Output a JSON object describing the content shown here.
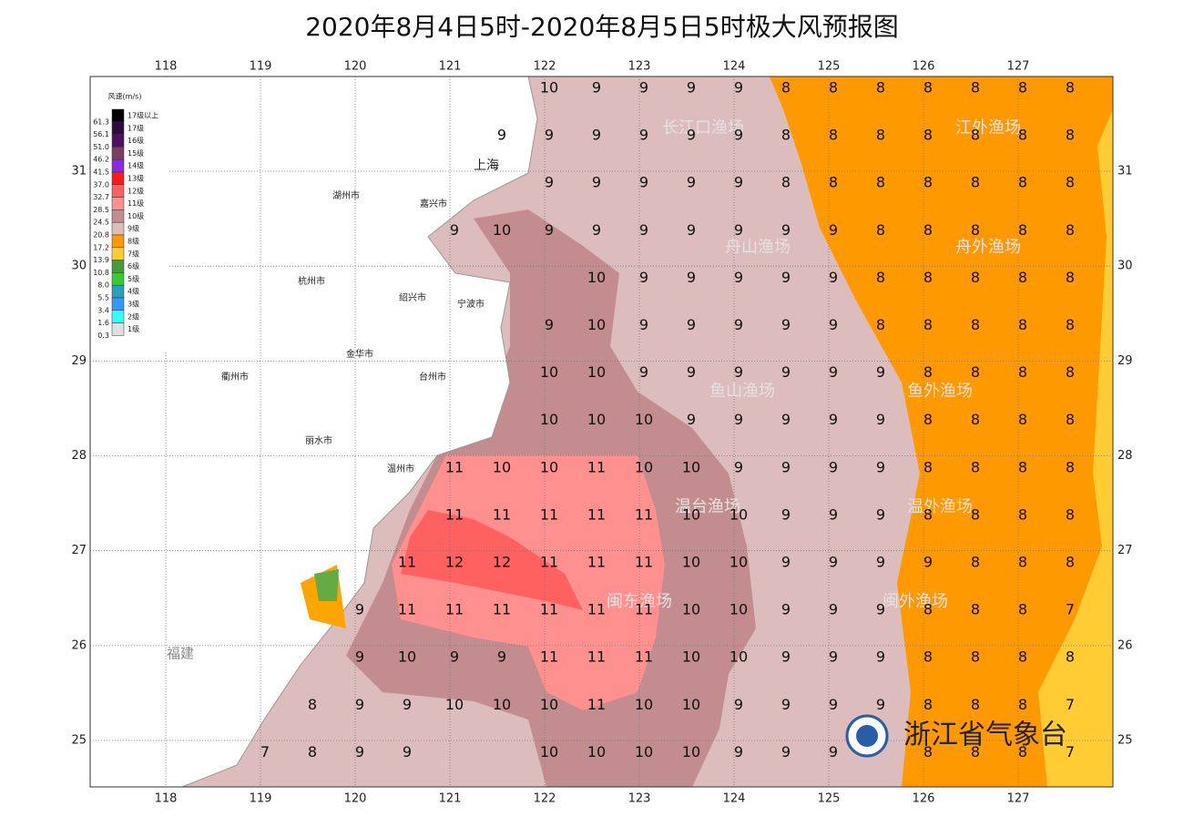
{
  "title": "2020年8月4日5时-2020年8月5日5时极大风预报图",
  "lon_ticks": [
    118,
    119,
    120,
    121,
    122,
    123,
    124,
    125,
    126,
    127
  ],
  "lat_ticks": [
    31,
    30,
    29,
    28,
    27,
    26,
    25
  ],
  "legend": {
    "title": "风速(m/s)",
    "items": [
      {
        "speed": "61.3",
        "level": "17级以上",
        "color": "#000000"
      },
      {
        "speed": "56.1",
        "level": "17级",
        "color": "#2e0a3e"
      },
      {
        "speed": "51.0",
        "level": "16级",
        "color": "#4b1060"
      },
      {
        "speed": "46.2",
        "level": "15级",
        "color": "#7b3f5a"
      },
      {
        "speed": "41.5",
        "level": "14级",
        "color": "#8a2be2"
      },
      {
        "speed": "37.0",
        "level": "13级",
        "color": "#ff1a1a"
      },
      {
        "speed": "32.7",
        "level": "12级",
        "color": "#ff6060"
      },
      {
        "speed": "28.5",
        "level": "11级",
        "color": "#ff9090"
      },
      {
        "speed": "24.5",
        "level": "10级",
        "color": "#c38c8e"
      },
      {
        "speed": "20.8",
        "level": "9级",
        "color": "#dcbcbc"
      },
      {
        "speed": "17.2",
        "level": "8级",
        "color": "#ff9900"
      },
      {
        "speed": "13.9",
        "level": "7级",
        "color": "#ffcc33"
      },
      {
        "speed": "10.8",
        "level": "6级",
        "color": "#4a9a3a"
      },
      {
        "speed": "8.0",
        "level": "5级",
        "color": "#33cc33"
      },
      {
        "speed": "5.5",
        "level": "4级",
        "color": "#2aa0c0"
      },
      {
        "speed": "3.4",
        "level": "3级",
        "color": "#3399ff"
      },
      {
        "speed": "1.6",
        "level": "2级",
        "color": "#33ffff"
      },
      {
        "speed": "0.3",
        "level": "1级",
        "color": "#e0e0e0"
      }
    ]
  },
  "cities": [
    "上海",
    "湖州市",
    "嘉兴市",
    "杭州市",
    "绍兴市",
    "宁波市",
    "金华市",
    "衢州市",
    "台州市",
    "丽水市",
    "温州市",
    "福建"
  ],
  "fisheries": [
    "长江口渔场",
    "江外渔场",
    "舟山渔场",
    "舟外渔场",
    "鱼山渔场",
    "鱼外渔场",
    "温台渔场",
    "温外渔场",
    "闽东渔场",
    "闽外渔场"
  ],
  "watermark": "浙江省气象台",
  "wind_grid": [
    [
      null,
      null,
      null,
      null,
      null,
      null,
      10,
      9,
      9,
      9,
      9,
      8,
      8,
      8,
      8,
      8,
      8,
      8
    ],
    [
      null,
      null,
      null,
      null,
      null,
      9,
      9,
      9,
      9,
      9,
      9,
      8,
      8,
      8,
      8,
      8,
      8,
      8
    ],
    [
      null,
      null,
      null,
      null,
      null,
      null,
      9,
      9,
      9,
      9,
      9,
      8,
      8,
      8,
      8,
      8,
      8,
      8
    ],
    [
      null,
      null,
      null,
      null,
      9,
      10,
      9,
      9,
      9,
      9,
      9,
      9,
      9,
      8,
      8,
      8,
      8,
      8
    ],
    [
      null,
      null,
      null,
      null,
      null,
      null,
      null,
      10,
      9,
      9,
      9,
      9,
      9,
      8,
      8,
      8,
      8,
      8
    ],
    [
      null,
      null,
      null,
      null,
      null,
      null,
      9,
      10,
      9,
      9,
      9,
      9,
      9,
      8,
      8,
      8,
      8,
      8
    ],
    [
      null,
      null,
      null,
      null,
      null,
      null,
      10,
      10,
      9,
      9,
      9,
      9,
      9,
      9,
      8,
      8,
      8,
      8
    ],
    [
      null,
      null,
      null,
      null,
      null,
      null,
      10,
      10,
      10,
      9,
      9,
      9,
      9,
      9,
      8,
      8,
      8,
      8
    ],
    [
      null,
      null,
      null,
      null,
      11,
      10,
      10,
      11,
      10,
      10,
      9,
      9,
      9,
      9,
      8,
      8,
      8,
      8
    ],
    [
      null,
      null,
      null,
      null,
      11,
      11,
      11,
      11,
      11,
      10,
      10,
      9,
      9,
      9,
      8,
      8,
      8,
      8
    ],
    [
      null,
      null,
      null,
      11,
      12,
      12,
      11,
      11,
      11,
      10,
      10,
      9,
      9,
      9,
      9,
      8,
      8,
      8
    ],
    [
      null,
      null,
      9,
      11,
      11,
      11,
      11,
      11,
      11,
      10,
      10,
      9,
      9,
      9,
      8,
      8,
      8,
      7
    ],
    [
      null,
      null,
      9,
      10,
      9,
      9,
      11,
      11,
      11,
      10,
      10,
      9,
      9,
      9,
      8,
      8,
      8,
      8
    ],
    [
      null,
      8,
      9,
      9,
      10,
      10,
      10,
      11,
      10,
      10,
      9,
      9,
      9,
      9,
      8,
      8,
      8,
      7
    ],
    [
      7,
      8,
      9,
      9,
      null,
      null,
      10,
      10,
      10,
      10,
      9,
      9,
      9,
      null,
      8,
      8,
      8,
      7
    ]
  ]
}
